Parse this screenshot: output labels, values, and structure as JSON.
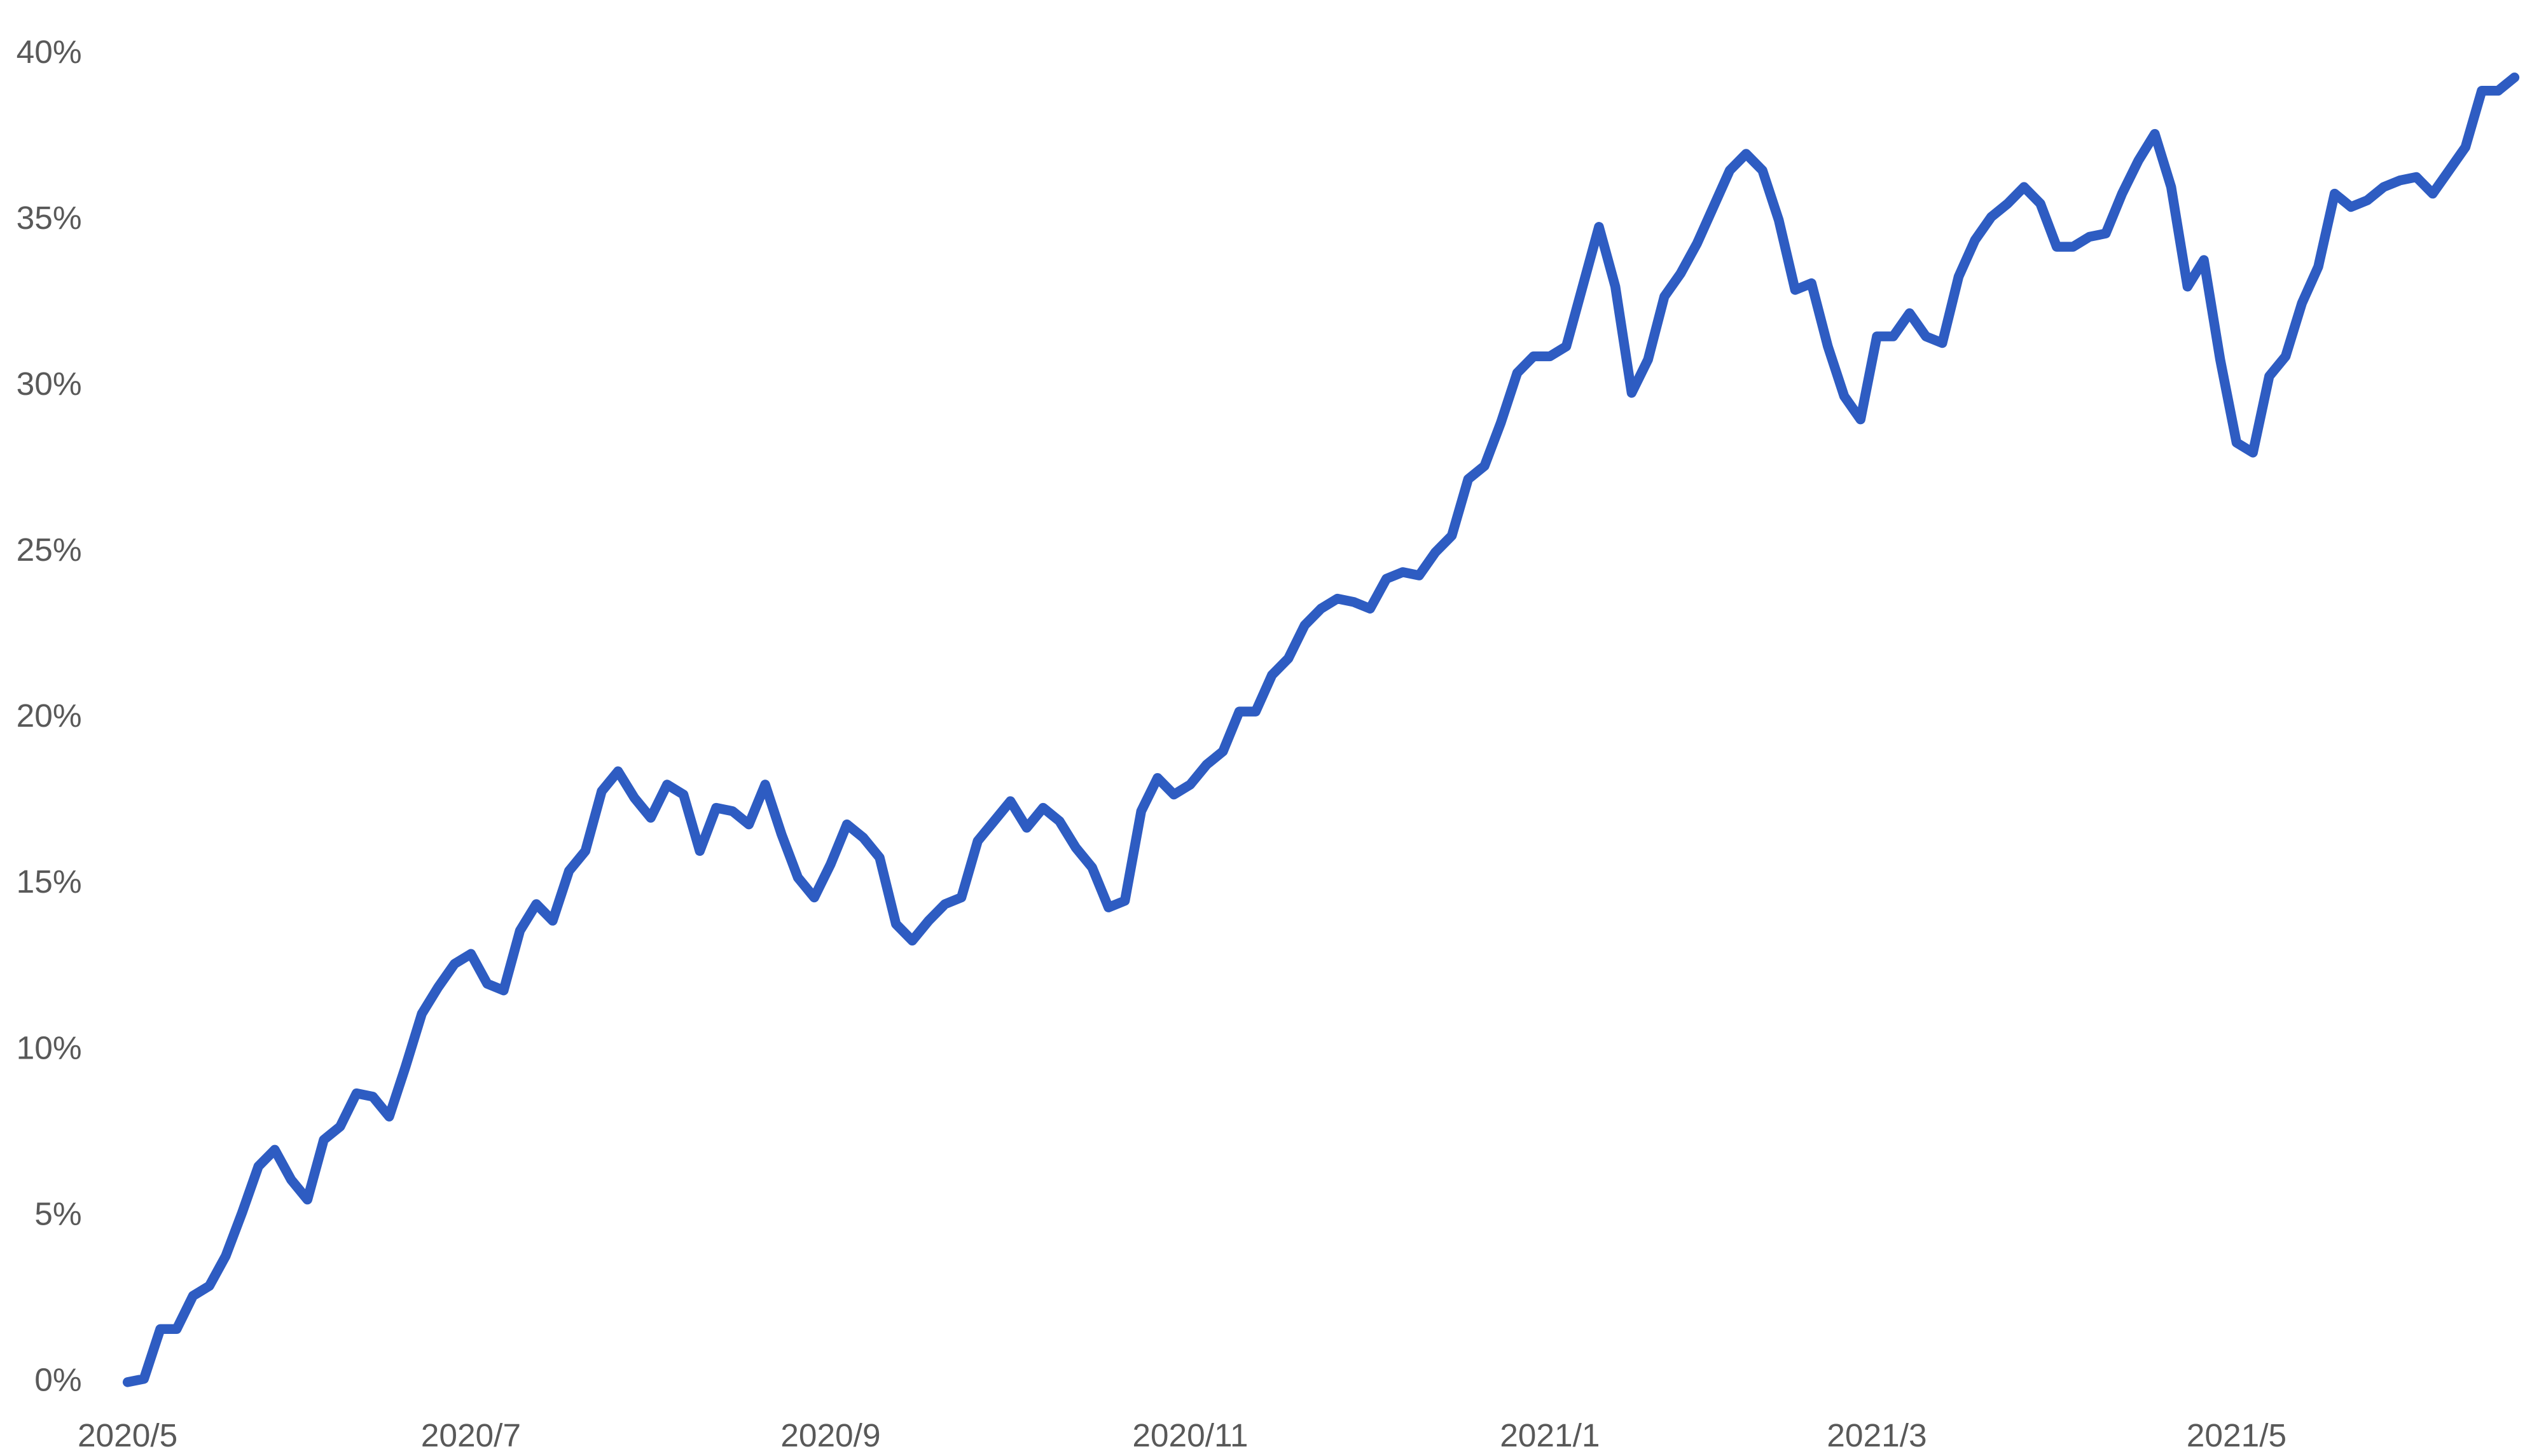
{
  "chart_data": {
    "type": "line",
    "categories": [
      "2020/5",
      null,
      null,
      null,
      null,
      null,
      null,
      null,
      null,
      null,
      null,
      null,
      null,
      null,
      null,
      null,
      null,
      null,
      null,
      null,
      null,
      "2020/7",
      null,
      null,
      null,
      null,
      null,
      null,
      null,
      null,
      null,
      null,
      null,
      null,
      null,
      null,
      null,
      null,
      null,
      null,
      null,
      null,
      null,
      "2020/9",
      null,
      null,
      null,
      null,
      null,
      null,
      null,
      null,
      null,
      null,
      null,
      null,
      null,
      null,
      null,
      null,
      null,
      null,
      null,
      null,
      null,
      "2020/11",
      null,
      null,
      null,
      null,
      null,
      null,
      null,
      null,
      null,
      null,
      null,
      null,
      null,
      null,
      null,
      null,
      null,
      null,
      null,
      null,
      null,
      "2021/1",
      null,
      null,
      null,
      null,
      null,
      null,
      null,
      null,
      null,
      null,
      null,
      null,
      null,
      null,
      null,
      null,
      null,
      null,
      null,
      "2021/3",
      null,
      null,
      null,
      null,
      null,
      null,
      null,
      null,
      null,
      null,
      null,
      null,
      null,
      null,
      null,
      null,
      null,
      null,
      null,
      null,
      null,
      "2021/5",
      null,
      null,
      null,
      null,
      null,
      null,
      null,
      null,
      null,
      null,
      null,
      null,
      null,
      null,
      null,
      null,
      null
    ],
    "values": [
      0,
      0.1,
      1.6,
      1.6,
      2.6,
      2.9,
      3.8,
      5.1,
      6.5,
      7.0,
      6.1,
      5.5,
      7.3,
      7.7,
      8.7,
      8.6,
      8.0,
      9.5,
      11.1,
      11.9,
      12.6,
      12.9,
      12.0,
      11.8,
      13.6,
      14.4,
      13.9,
      15.4,
      16.0,
      17.8,
      18.4,
      17.6,
      17.0,
      18.0,
      17.7,
      16.0,
      17.3,
      17.2,
      16.8,
      18.0,
      16.5,
      15.2,
      14.6,
      15.6,
      16.8,
      16.4,
      15.8,
      13.8,
      13.3,
      13.9,
      14.4,
      14.6,
      16.3,
      16.9,
      17.5,
      16.7,
      17.3,
      16.9,
      16.1,
      15.5,
      14.3,
      14.5,
      17.2,
      18.2,
      17.7,
      18.0,
      18.6,
      19.0,
      20.2,
      20.2,
      21.3,
      21.8,
      22.8,
      23.3,
      23.6,
      23.5,
      23.3,
      24.2,
      24.4,
      24.3,
      25.0,
      25.5,
      27.2,
      27.6,
      28.9,
      30.4,
      30.9,
      30.9,
      31.2,
      33.0,
      34.8,
      33.0,
      29.8,
      30.8,
      32.7,
      33.4,
      34.3,
      35.4,
      36.5,
      37.0,
      36.5,
      35.0,
      32.9,
      33.1,
      31.2,
      29.7,
      29.0,
      31.5,
      31.5,
      32.2,
      31.5,
      31.3,
      33.3,
      34.4,
      35.1,
      35.5,
      36.0,
      35.5,
      34.2,
      34.2,
      34.5,
      34.6,
      35.8,
      36.8,
      37.6,
      36.0,
      33.0,
      33.8,
      30.8,
      28.3,
      28.0,
      30.3,
      30.9,
      32.5,
      33.6,
      35.8,
      35.4,
      35.6,
      36.0,
      36.2,
      36.3,
      35.8,
      36.5,
      37.2,
      38.9,
      38.9,
      39.3
    ],
    "color": "#2e5cc2",
    "ylim": [
      0,
      40
    ],
    "yticks": [
      {
        "value": 0,
        "label": "0%"
      },
      {
        "value": 5,
        "label": "5%"
      },
      {
        "value": 10,
        "label": "10%"
      },
      {
        "value": 15,
        "label": "15%"
      },
      {
        "value": 20,
        "label": "20%"
      },
      {
        "value": 25,
        "label": "25%"
      },
      {
        "value": 30,
        "label": "30%"
      },
      {
        "value": 35,
        "label": "35%"
      },
      {
        "value": 40,
        "label": "40%"
      }
    ],
    "grid": false
  }
}
